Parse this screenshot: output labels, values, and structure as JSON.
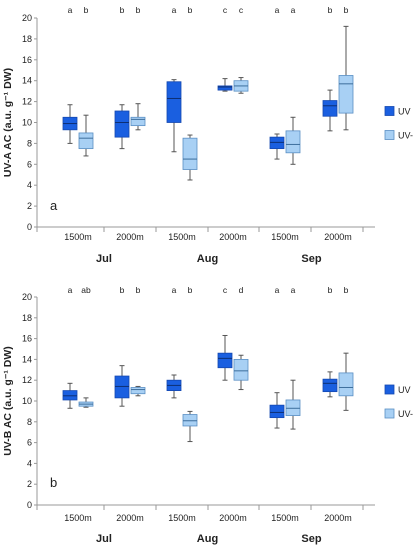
{
  "colors": {
    "uv": "#1a5fe0",
    "uv_minus": "#a8d0f4",
    "whisker": "#555555",
    "axis": "#999999"
  },
  "x_groups": [
    {
      "month": "Jul",
      "sites": [
        "1500m",
        "2000m"
      ]
    },
    {
      "month": "Aug",
      "sites": [
        "1500m",
        "2000m"
      ]
    },
    {
      "month": "Sep",
      "sites": [
        "1500m",
        "2000m"
      ]
    }
  ],
  "chart_data": [
    {
      "type": "box",
      "panel_label": "a",
      "ylabel": "UV-A AC (a.u. g⁻¹ DW)",
      "ylim": [
        0,
        20
      ],
      "yticks": [
        0,
        2,
        4,
        6,
        8,
        10,
        12,
        14,
        16,
        18,
        20
      ],
      "categories": [
        "1500m",
        "2000m",
        "1500m",
        "2000m",
        "1500m",
        "2000m"
      ],
      "series": [
        {
          "name": "UV",
          "boxes": [
            {
              "min": 8.0,
              "q1": 9.3,
              "median": 9.9,
              "q3": 10.5,
              "max": 11.7
            },
            {
              "min": 7.5,
              "q1": 8.6,
              "median": 10.0,
              "q3": 11.1,
              "max": 11.7
            },
            {
              "min": 7.2,
              "q1": 10.0,
              "median": 12.3,
              "q3": 13.9,
              "max": 14.1
            },
            {
              "min": 13.0,
              "q1": 13.1,
              "median": 13.4,
              "q3": 13.5,
              "max": 14.2
            },
            {
              "min": 6.5,
              "q1": 7.5,
              "median": 8.1,
              "q3": 8.6,
              "max": 8.9
            },
            {
              "min": 9.2,
              "q1": 10.6,
              "median": 11.6,
              "q3": 12.1,
              "max": 13.1
            }
          ]
        },
        {
          "name": "UV-",
          "boxes": [
            {
              "min": 6.8,
              "q1": 7.5,
              "median": 8.5,
              "q3": 9.0,
              "max": 10.7
            },
            {
              "min": 9.3,
              "q1": 9.7,
              "median": 10.3,
              "q3": 10.5,
              "max": 11.8
            },
            {
              "min": 4.5,
              "q1": 5.5,
              "median": 6.5,
              "q3": 8.5,
              "max": 8.8
            },
            {
              "min": 12.8,
              "q1": 13.0,
              "median": 13.5,
              "q3": 14.0,
              "max": 14.3
            },
            {
              "min": 6.0,
              "q1": 7.1,
              "median": 7.9,
              "q3": 9.2,
              "max": 10.5
            },
            {
              "min": 9.3,
              "q1": 10.9,
              "median": 13.7,
              "q3": 14.5,
              "max": 19.2
            }
          ]
        }
      ],
      "letters": [
        [
          "a",
          "b"
        ],
        [
          "b",
          "b"
        ],
        [
          "a",
          "b"
        ],
        [
          "c",
          "c"
        ],
        [
          "a",
          "a"
        ],
        [
          "b",
          "b"
        ]
      ],
      "legend": [
        "UV",
        "UV-"
      ]
    },
    {
      "type": "box",
      "panel_label": "b",
      "ylabel": "UV-B AC (a.u. g⁻¹ DW)",
      "ylim": [
        0,
        20
      ],
      "yticks": [
        0,
        2,
        4,
        6,
        8,
        10,
        12,
        14,
        16,
        18,
        20
      ],
      "categories": [
        "1500m",
        "2000m",
        "1500m",
        "2000m",
        "1500m",
        "2000m"
      ],
      "series": [
        {
          "name": "UV",
          "boxes": [
            {
              "min": 9.3,
              "q1": 10.1,
              "median": 10.5,
              "q3": 11.0,
              "max": 11.7
            },
            {
              "min": 9.5,
              "q1": 10.3,
              "median": 11.4,
              "q3": 12.4,
              "max": 13.4
            },
            {
              "min": 10.3,
              "q1": 11.0,
              "median": 11.5,
              "q3": 12.0,
              "max": 12.5
            },
            {
              "min": 12.0,
              "q1": 13.2,
              "median": 14.1,
              "q3": 14.6,
              "max": 16.3
            },
            {
              "min": 7.4,
              "q1": 8.4,
              "median": 8.9,
              "q3": 9.6,
              "max": 10.8
            },
            {
              "min": 10.4,
              "q1": 10.9,
              "median": 11.7,
              "q3": 12.1,
              "max": 12.8
            }
          ]
        },
        {
          "name": "UV-",
          "boxes": [
            {
              "min": 9.4,
              "q1": 9.5,
              "median": 9.7,
              "q3": 9.9,
              "max": 10.3
            },
            {
              "min": 10.5,
              "q1": 10.7,
              "median": 11.1,
              "q3": 11.3,
              "max": 11.4
            },
            {
              "min": 6.1,
              "q1": 7.6,
              "median": 8.1,
              "q3": 8.7,
              "max": 9.0
            },
            {
              "min": 11.1,
              "q1": 12.0,
              "median": 12.9,
              "q3": 14.0,
              "max": 14.4
            },
            {
              "min": 7.3,
              "q1": 8.6,
              "median": 9.3,
              "q3": 10.1,
              "max": 12.0
            },
            {
              "min": 9.1,
              "q1": 10.5,
              "median": 11.3,
              "q3": 12.7,
              "max": 14.6
            }
          ]
        }
      ],
      "letters": [
        [
          "a",
          "ab"
        ],
        [
          "b",
          "b"
        ],
        [
          "a",
          "b"
        ],
        [
          "c",
          "d"
        ],
        [
          "a",
          "a"
        ],
        [
          "b",
          "b"
        ]
      ],
      "legend": [
        "UV",
        "UV-"
      ]
    }
  ]
}
